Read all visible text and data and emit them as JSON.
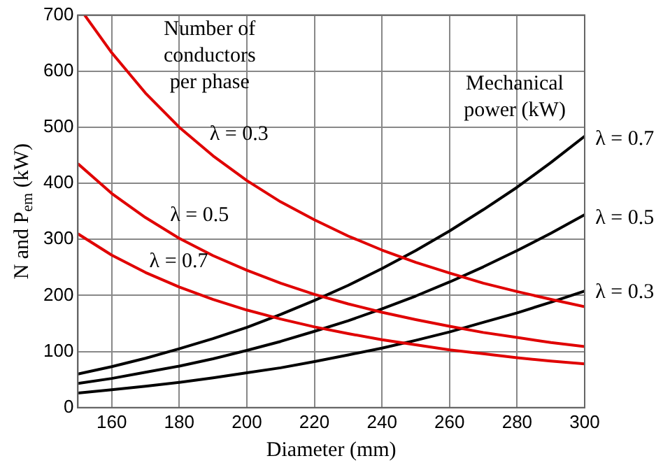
{
  "chart_data": {
    "type": "line",
    "xlabel": "Diameter (mm)",
    "ylabel": "N and P$_{em}$ (kW)",
    "xlim": [
      150,
      300
    ],
    "xticks": [
      160,
      180,
      200,
      220,
      240,
      260,
      280,
      300
    ],
    "ylim": [
      0,
      700
    ],
    "yticks": [
      0,
      100,
      200,
      300,
      400,
      500,
      600,
      700
    ],
    "grid": true,
    "legend": false,
    "marker": "none",
    "line_style": "solid",
    "series": [
      {
        "color": "#e00000",
        "x": [
          152,
          160,
          170,
          180,
          190,
          200,
          210,
          220,
          230,
          240,
          250,
          260,
          270,
          280,
          290,
          300
        ],
        "values": [
          700,
          633,
          561,
          500,
          449,
          405,
          367,
          335,
          306,
          281,
          259,
          240,
          222,
          207,
          193,
          180
        ]
      },
      {
        "color": "#e00000",
        "x": [
          150,
          160,
          170,
          180,
          190,
          200,
          210,
          220,
          230,
          240,
          250,
          260,
          270,
          280,
          290,
          300
        ],
        "values": [
          435,
          382,
          339,
          302,
          271,
          245,
          222,
          202,
          185,
          170,
          157,
          145,
          134,
          125,
          116,
          109
        ]
      },
      {
        "color": "#e00000",
        "x": [
          150,
          160,
          170,
          180,
          190,
          200,
          210,
          220,
          230,
          240,
          250,
          260,
          270,
          280,
          290,
          300
        ],
        "values": [
          310,
          272,
          241,
          215,
          193,
          174,
          158,
          144,
          132,
          121,
          112,
          103,
          96,
          89,
          83,
          78
        ]
      },
      {
        "color": "#000000",
        "x": [
          150,
          160,
          170,
          180,
          190,
          200,
          210,
          220,
          230,
          240,
          250,
          260,
          270,
          280,
          290,
          300
        ],
        "values": [
          60,
          73,
          88,
          105,
          123,
          143,
          166,
          191,
          218,
          248,
          280,
          315,
          353,
          393,
          437,
          484
        ]
      },
      {
        "color": "#000000",
        "x": [
          150,
          160,
          170,
          180,
          190,
          200,
          210,
          220,
          230,
          240,
          250,
          260,
          270,
          280,
          290,
          300
        ],
        "values": [
          43,
          52,
          63,
          74,
          87,
          102,
          118,
          136,
          155,
          176,
          199,
          224,
          251,
          280,
          311,
          344
        ]
      },
      {
        "color": "#000000",
        "x": [
          150,
          160,
          170,
          180,
          190,
          200,
          210,
          220,
          230,
          240,
          250,
          260,
          270,
          280,
          290,
          300
        ],
        "values": [
          26,
          32,
          38,
          45,
          53,
          62,
          71,
          82,
          94,
          106,
          120,
          135,
          152,
          169,
          188,
          208
        ]
      }
    ],
    "annotations": [
      "Number of\nconductors\nper phase",
      "Mechanical\npower (kW)",
      "λ = 0.3",
      "λ = 0.5",
      "λ = 0.7",
      "λ = 0.7",
      "λ = 0.5",
      "λ = 0.3"
    ]
  }
}
